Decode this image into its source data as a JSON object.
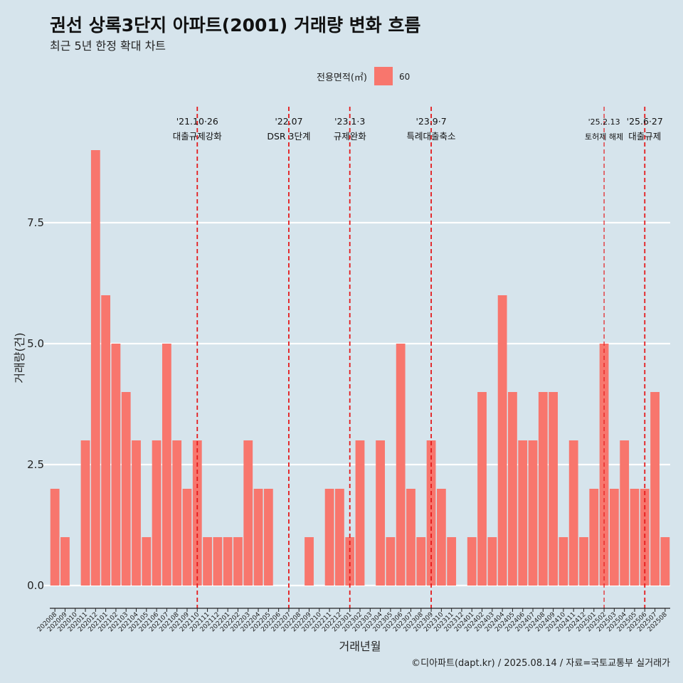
{
  "chart_data": {
    "type": "bar",
    "title": "권선 상록3단지 아파트(2001) 거래량 변화 흐름",
    "subtitle": "최근 5년 한정 확대 차트",
    "xlabel": "거래년월",
    "ylabel": "거래량(건)",
    "ylim": [
      -0.45,
      9.5
    ],
    "yticks": [
      "0.0",
      "2.5",
      "5.0",
      "7.5"
    ],
    "ytick_values": [
      0,
      2.5,
      5,
      7.5
    ],
    "legend": {
      "title": "전용면적(㎡)",
      "placement": "top",
      "entries": [
        {
          "label": "60",
          "color": "#f8766d"
        }
      ]
    },
    "grid": true,
    "categories": [
      "202008",
      "202009",
      "202010",
      "202011",
      "202012",
      "202101",
      "202102",
      "202103",
      "202104",
      "202105",
      "202106",
      "202107",
      "202108",
      "202109",
      "202110",
      "202111",
      "202112",
      "202201",
      "202202",
      "202203",
      "202204",
      "202205",
      "202206",
      "202207",
      "202208",
      "202209",
      "202210",
      "202211",
      "202212",
      "202301",
      "202302",
      "202303",
      "202304",
      "202305",
      "202306",
      "202307",
      "202308",
      "202309",
      "202310",
      "202311",
      "202312",
      "202401",
      "202402",
      "202403",
      "202404",
      "202405",
      "202406",
      "202407",
      "202408",
      "202409",
      "202410",
      "202411",
      "202412",
      "202501",
      "202502",
      "202503",
      "202504",
      "202505",
      "202506",
      "202507",
      "202508"
    ],
    "series": [
      {
        "name": "60",
        "color": "#f8766d",
        "values": [
          2,
          1,
          0,
          3,
          9,
          6,
          5,
          4,
          3,
          1,
          3,
          5,
          3,
          2,
          3,
          1,
          1,
          1,
          1,
          3,
          2,
          2,
          0,
          0,
          0,
          1,
          0,
          2,
          2,
          1,
          3,
          0,
          3,
          1,
          5,
          2,
          1,
          3,
          2,
          1,
          0,
          1,
          4,
          1,
          6,
          4,
          3,
          3,
          4,
          4,
          1,
          3,
          1,
          2,
          5,
          2,
          3,
          2,
          2,
          4,
          1
        ]
      }
    ],
    "annotations": [
      {
        "month": "202110",
        "line1": "'21.10·26",
        "line2": "대출규제강화",
        "size": "normal"
      },
      {
        "month": "202207",
        "line1": "'22.07",
        "line2": "DSR 3단계",
        "size": "normal"
      },
      {
        "month": "202301",
        "line1": "'23.1·3",
        "line2": "규제완화",
        "size": "normal"
      },
      {
        "month": "202309",
        "line1": "'23.9·7",
        "line2": "특례대출축소",
        "size": "normal"
      },
      {
        "month": "202502",
        "line1": "'25.2.13",
        "line2": "토허제 해제",
        "size": "small"
      },
      {
        "month": "202506",
        "line1": "'25.6·27",
        "line2": "대출규제",
        "size": "normal"
      }
    ],
    "caption": "©디아파트(dapt.kr) / 2025.08.14 / 자료=국토교통부 실거래가",
    "colors": {
      "bar": "#f8766d",
      "annotation_line": "#e41a1c",
      "background": "#d6e4ec",
      "grid": "#ffffff"
    }
  }
}
